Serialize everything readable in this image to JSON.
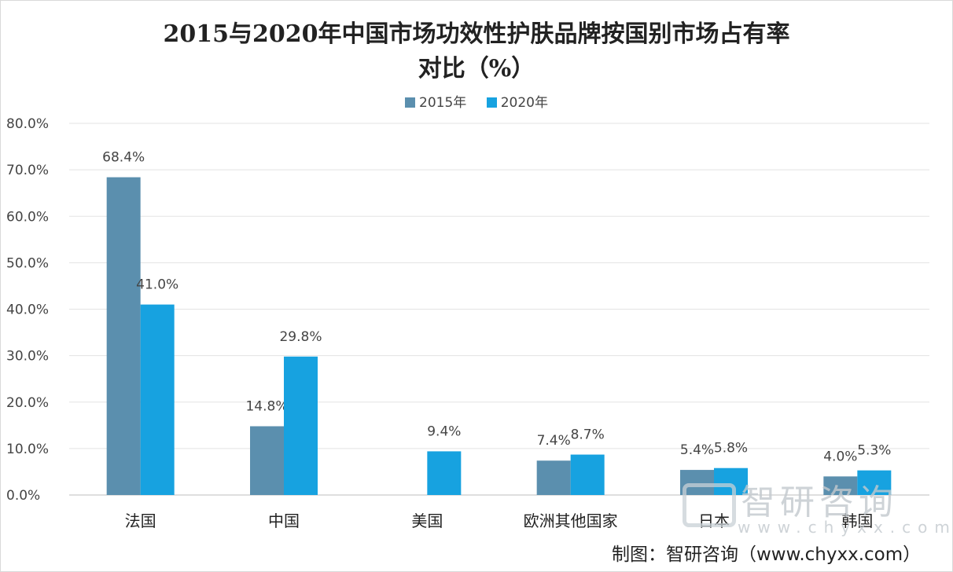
{
  "chart_data": {
    "type": "bar",
    "title_line1": "2015与2020年中国市场功效性护肤品牌按国别市场占有率",
    "title_line2": "对比（%）",
    "categories": [
      "法国",
      "中国",
      "美国",
      "欧洲其他国家",
      "日本",
      "韩国"
    ],
    "series": [
      {
        "name": "2015年",
        "color": "#5b8fae",
        "values": [
          68.4,
          14.8,
          null,
          7.4,
          5.4,
          4.0
        ],
        "labels": [
          "68.4%",
          "14.8%",
          "",
          "7.4%",
          "5.4%",
          "4.0%"
        ]
      },
      {
        "name": "2020年",
        "color": "#17a2e0",
        "values": [
          41.0,
          29.8,
          9.4,
          8.7,
          5.8,
          5.3
        ],
        "labels": [
          "41.0%",
          "29.8%",
          "9.4%",
          "8.7%",
          "5.8%",
          "5.3%"
        ]
      }
    ],
    "y_ticks": [
      "0.0%",
      "10.0%",
      "20.0%",
      "30.0%",
      "40.0%",
      "50.0%",
      "60.0%",
      "70.0%",
      "80.0%"
    ],
    "ylim": [
      0,
      80
    ],
    "grid": true,
    "legend_position": "top-center"
  },
  "watermark": {
    "text": "智研咨询",
    "url": "www.chyxx.com",
    "icon": "zhiyan-logo-icon"
  },
  "source": "制图：智研咨询（www.chyxx.com）"
}
